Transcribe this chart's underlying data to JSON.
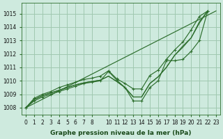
{
  "background_color": "#ceeade",
  "grid_color": "#a0c8b0",
  "line_color": "#2d6e2d",
  "xlabel": "Graphe pression niveau de la mer (hPa)",
  "xlim": [
    -0.5,
    23.5
  ],
  "ylim": [
    1007.5,
    1015.8
  ],
  "yticks": [
    1008,
    1009,
    1010,
    1011,
    1012,
    1013,
    1014,
    1015
  ],
  "xtick_labels": [
    "0",
    "1",
    "2",
    "3",
    "4",
    "5",
    "6",
    "7",
    "8",
    "10",
    "11",
    "12",
    "13",
    "14",
    "15",
    "16",
    "17",
    "18",
    "19",
    "20",
    "21",
    "22",
    "23"
  ],
  "xtick_positions": [
    0,
    1,
    2,
    3,
    4,
    5,
    6,
    7,
    8,
    10,
    11,
    12,
    13,
    14,
    15,
    16,
    17,
    18,
    19,
    20,
    21,
    22,
    23
  ],
  "series": {
    "straight": {
      "x": [
        0,
        23
      ],
      "y": [
        1008.0,
        1015.2
      ],
      "marker": false
    },
    "line1": {
      "x": [
        0,
        1,
        2,
        3,
        4,
        5,
        6,
        7,
        8,
        9,
        10,
        11,
        12,
        13,
        14,
        15,
        16,
        17,
        18,
        19,
        20,
        21,
        22
      ],
      "y": [
        1008.0,
        1008.6,
        1008.9,
        1009.1,
        1009.3,
        1009.5,
        1009.7,
        1009.85,
        1009.95,
        1010.05,
        1010.35,
        1009.95,
        1009.5,
        1008.8,
        1008.8,
        1009.8,
        1010.3,
        1011.0,
        1011.9,
        1012.5,
        1013.2,
        1014.3,
        1015.2
      ],
      "marker": false
    },
    "line2": {
      "x": [
        0,
        1,
        2,
        3,
        4,
        5,
        6,
        7,
        8,
        9,
        10,
        11,
        12,
        13,
        14,
        15,
        16,
        17,
        18,
        19,
        20,
        21,
        22
      ],
      "y": [
        1008.0,
        1008.6,
        1008.9,
        1009.1,
        1009.3,
        1009.5,
        1009.7,
        1009.85,
        1009.95,
        1010.05,
        1010.35,
        1009.95,
        1009.5,
        1008.8,
        1008.8,
        1009.8,
        1010.3,
        1011.0,
        1011.9,
        1012.6,
        1013.2,
        1014.4,
        1015.2
      ],
      "marker": false
    },
    "line3_marker": {
      "x": [
        0,
        1,
        2,
        3,
        4,
        5,
        6,
        7,
        8,
        9,
        10,
        11,
        12,
        13,
        14,
        15,
        16,
        17,
        18,
        19,
        20,
        21,
        22
      ],
      "y": [
        1008.0,
        1008.5,
        1008.8,
        1009.0,
        1009.2,
        1009.4,
        1009.6,
        1009.8,
        1009.9,
        1010.0,
        1010.7,
        1010.05,
        1009.5,
        1008.5,
        1008.5,
        1009.5,
        1010.0,
        1011.5,
        1011.5,
        1011.6,
        1012.2,
        1013.0,
        1015.2
      ],
      "marker": true
    },
    "line4_marker": {
      "x": [
        0,
        1,
        2,
        3,
        4,
        5,
        6,
        7,
        8,
        9,
        10,
        11,
        12,
        13,
        14,
        15,
        16,
        17,
        18,
        19,
        20,
        21,
        22
      ],
      "y": [
        1008.0,
        1008.7,
        1009.0,
        1009.2,
        1009.5,
        1009.7,
        1009.9,
        1010.1,
        1010.2,
        1010.35,
        1010.75,
        1010.15,
        1009.8,
        1009.4,
        1009.4,
        1010.4,
        1010.8,
        1011.6,
        1012.3,
        1012.9,
        1013.8,
        1014.8,
        1015.2
      ],
      "marker": true
    }
  },
  "xlabel_fontsize": 6.5,
  "tick_fontsize": 5.5
}
